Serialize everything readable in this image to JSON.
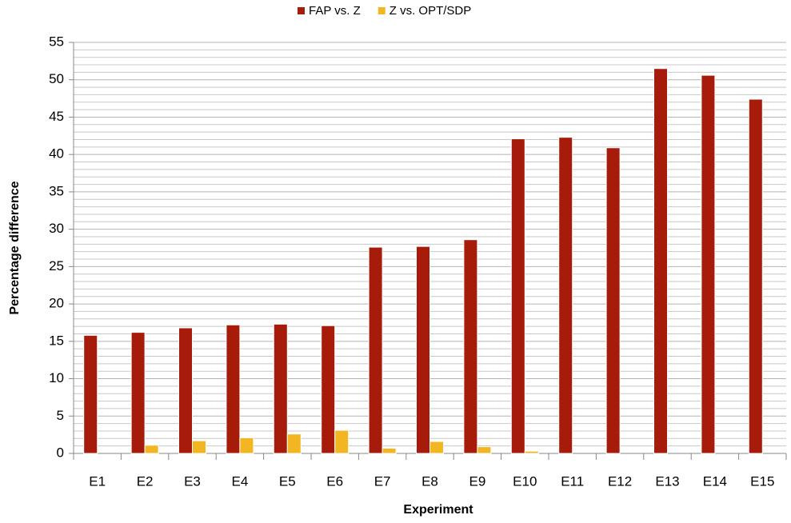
{
  "chart_data": {
    "type": "bar",
    "categories": [
      "E1",
      "E2",
      "E3",
      "E4",
      "E5",
      "E6",
      "E7",
      "E8",
      "E9",
      "E10",
      "E11",
      "E12",
      "E13",
      "E14",
      "E15"
    ],
    "series": [
      {
        "name": "FAP vs. Z",
        "color": "#a61b0a",
        "values": [
          15.8,
          16.2,
          16.8,
          17.2,
          17.3,
          17.1,
          27.6,
          27.7,
          28.6,
          42.1,
          42.3,
          40.9,
          51.5,
          50.6,
          47.4
        ]
      },
      {
        "name": "Z vs. OPT/SDP",
        "color": "#f2b622",
        "values": [
          0,
          1.1,
          1.7,
          2.1,
          2.6,
          3.1,
          0.7,
          1.6,
          0.9,
          0.3,
          0,
          0,
          0,
          0,
          0
        ]
      }
    ],
    "ylim": [
      0,
      55
    ],
    "yticks": [
      0,
      5,
      10,
      15,
      20,
      25,
      30,
      35,
      40,
      45,
      50,
      55
    ],
    "xlabel": "Experiment",
    "ylabel": "Percentage difference",
    "grid": true,
    "legend": "top"
  }
}
